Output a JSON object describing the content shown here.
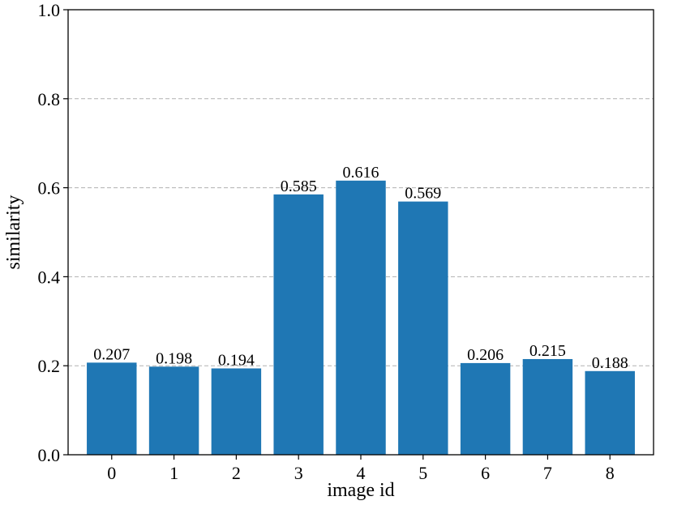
{
  "chart_data": {
    "type": "bar",
    "title": "",
    "xlabel": "image id",
    "ylabel": "similarity",
    "categories": [
      "0",
      "1",
      "2",
      "3",
      "4",
      "5",
      "6",
      "7",
      "8"
    ],
    "values": [
      0.207,
      0.198,
      0.194,
      0.585,
      0.616,
      0.569,
      0.206,
      0.215,
      0.188
    ],
    "data_labels": [
      "0.207",
      "0.198",
      "0.194",
      "0.585",
      "0.616",
      "0.569",
      "0.206",
      "0.215",
      "0.188"
    ],
    "ylim": [
      0,
      1.0
    ],
    "yticks": [
      "0.0",
      "0.2",
      "0.4",
      "0.6",
      "0.8",
      "1.0"
    ],
    "ytick_values": [
      0,
      0.2,
      0.4,
      0.6,
      0.8,
      1.0
    ],
    "grid": "y-dashed",
    "bar_color": "#1f77b4",
    "grid_color": "#b0b0b0"
  }
}
